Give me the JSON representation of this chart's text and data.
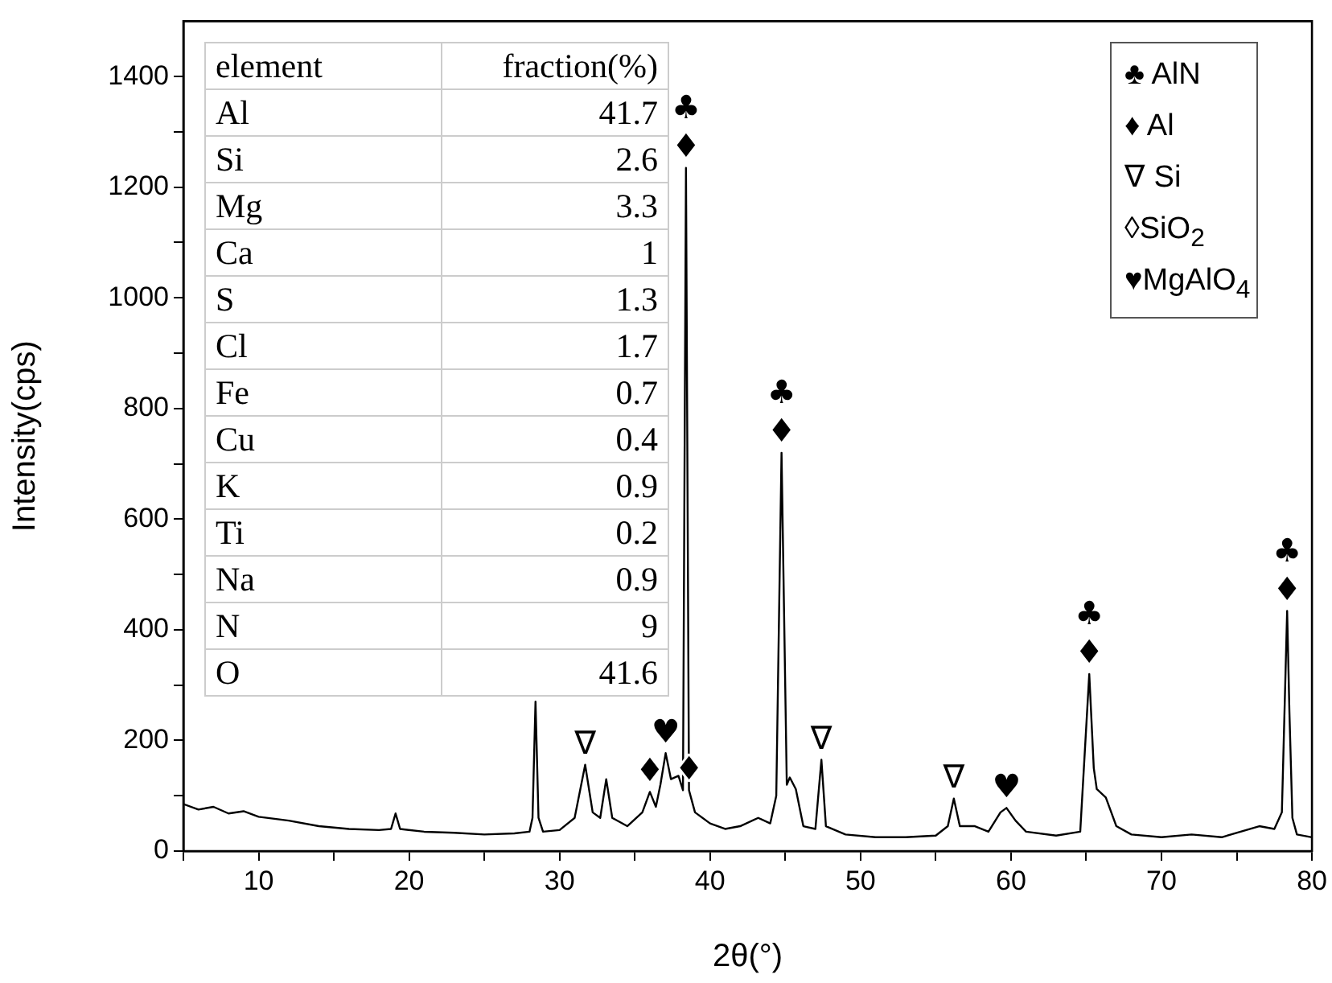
{
  "chart_data": {
    "type": "line",
    "xlabel": "2θ(°)",
    "ylabel": "Intensity(cps)",
    "xlim": [
      5,
      80
    ],
    "ylim": [
      0,
      1500
    ],
    "xticks": [
      {
        "value": 5,
        "label": null
      },
      10,
      {
        "value": 15,
        "label": null
      },
      20,
      {
        "value": 25,
        "label": null
      },
      30,
      {
        "value": 35,
        "label": null
      },
      40,
      {
        "value": 45,
        "label": null
      },
      50,
      {
        "value": 55,
        "label": null
      },
      60,
      {
        "value": 65,
        "label": null
      },
      70,
      {
        "value": 75,
        "label": null
      },
      80
    ],
    "yticks": [
      0,
      {
        "value": 100,
        "label": null
      },
      200,
      {
        "value": 300,
        "label": null
      },
      400,
      {
        "value": 500,
        "label": null
      },
      600,
      {
        "value": 700,
        "label": null
      },
      800,
      {
        "value": 900,
        "label": null
      },
      1000,
      {
        "value": 1100,
        "label": null
      },
      1200,
      {
        "value": 1300,
        "label": null
      },
      1400
    ],
    "grid": false,
    "legend": false,
    "marker": "none",
    "line_style": "solid",
    "series": [
      {
        "color": "#000000",
        "x": [
          5,
          6,
          7,
          8,
          9,
          10,
          12,
          14,
          16,
          18,
          18.8,
          19.1,
          19.4,
          21,
          23,
          25,
          27,
          28,
          28.2,
          28.4,
          28.6,
          28.9,
          30,
          31,
          31.7,
          32.2,
          32.7,
          33.1,
          33.5,
          34.5,
          35.5,
          36,
          36.4,
          36.7,
          37.05,
          37.4,
          37.9,
          38.2,
          38.4,
          38.6,
          39,
          40,
          41,
          42,
          43.2,
          44,
          44.4,
          44.75,
          45.1,
          45.3,
          45.7,
          46.2,
          47,
          47.4,
          47.7,
          49,
          51,
          53,
          55,
          55.8,
          56.2,
          56.6,
          57.6,
          58.5,
          59.3,
          59.7,
          60.3,
          61,
          63,
          64.6,
          65.2,
          65.5,
          65.7,
          66.3,
          67,
          68,
          70,
          72,
          74,
          76.5,
          77.5,
          78,
          78.35,
          78.5,
          78.7,
          79,
          80
        ],
        "values": [
          85,
          75,
          80,
          68,
          72,
          62,
          55,
          45,
          40,
          38,
          40,
          68,
          40,
          35,
          33,
          30,
          32,
          35,
          60,
          270,
          60,
          35,
          38,
          60,
          156,
          70,
          60,
          130,
          60,
          45,
          70,
          107,
          80,
          120,
          177,
          130,
          136,
          110,
          1235,
          110,
          70,
          50,
          40,
          45,
          60,
          50,
          100,
          720,
          120,
          133,
          112,
          45,
          40,
          165,
          45,
          30,
          25,
          25,
          28,
          45,
          95,
          45,
          45,
          35,
          70,
          78,
          55,
          35,
          28,
          35,
          320,
          150,
          112,
          97,
          45,
          30,
          25,
          30,
          25,
          45,
          40,
          70,
          434,
          253,
          60,
          30,
          25
        ]
      }
    ],
    "annotations": [
      {
        "text": "♣",
        "x": 38.4,
        "y": 1235
      },
      {
        "text": "♦",
        "x": 38.4,
        "y": 1235
      },
      {
        "text": "♣",
        "x": 44.75,
        "y": 720
      },
      {
        "text": "♦",
        "x": 44.75,
        "y": 720
      },
      {
        "text": "♣",
        "x": 65.2,
        "y": 320
      },
      {
        "text": "♦",
        "x": 65.2,
        "y": 320
      },
      {
        "text": "♣",
        "x": 78.35,
        "y": 434
      },
      {
        "text": "♦",
        "x": 78.35,
        "y": 434
      },
      {
        "text": "∇",
        "x": 31.7,
        "y": 156
      },
      {
        "text": "∇",
        "x": 47.4,
        "y": 165
      },
      {
        "text": "∇",
        "x": 56.2,
        "y": 95
      },
      {
        "text": "♥",
        "x": 37.05,
        "y": 177
      },
      {
        "text": "♥",
        "x": 59.7,
        "y": 78
      },
      {
        "text": "♦",
        "x": 36,
        "y": 107
      },
      {
        "text": "♦",
        "x": 38.6,
        "y": 110
      },
      "element",
      "fraction(%)",
      "Al",
      "41.7",
      "Si",
      "2.6",
      "Mg",
      "3.3",
      "Ca",
      "1",
      "S",
      "1.3",
      "Cl",
      "1.7",
      "Fe",
      "0.7",
      "Cu",
      "0.4",
      "K",
      "0.9",
      "Ti",
      "0.2",
      "Na",
      "0.9",
      "N",
      "9",
      "O",
      "41.6",
      "♣ AlN",
      "♦ Al",
      "∇ Si",
      "◊SiO$_{2}$",
      "♥MgAlO$_{4}$"
    ]
  }
}
